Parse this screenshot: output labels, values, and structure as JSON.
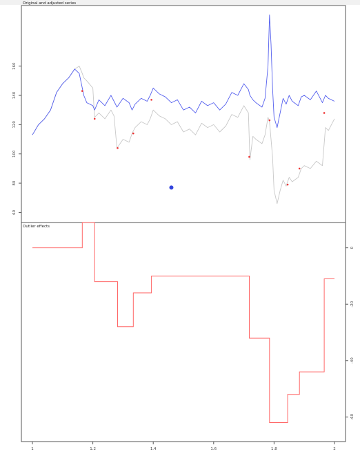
{
  "chart_data": [
    {
      "panel": "top",
      "type": "line",
      "title": "Original and adjusted series",
      "xlim": [
        1.0,
        2.0
      ],
      "ylim": [
        55,
        200
      ],
      "y_ticks": [
        60,
        80,
        100,
        120,
        140,
        160
      ],
      "y_tick_labels": [
        "60",
        "80",
        "100",
        "120",
        "140",
        "160"
      ],
      "colors": {
        "original": "#5560ee",
        "adjusted": "#c8c8c8",
        "outlier": "#ee3333",
        "marker": "#3344dd"
      },
      "series": [
        {
          "role": "original",
          "x": [
            1.0,
            1.02,
            1.04,
            1.06,
            1.08,
            1.1,
            1.12,
            1.14,
            1.155,
            1.165,
            1.17,
            1.18,
            1.2,
            1.206,
            1.22,
            1.24,
            1.26,
            1.27,
            1.28,
            1.3,
            1.32,
            1.33,
            1.34,
            1.36,
            1.38,
            1.39,
            1.4,
            1.42,
            1.44,
            1.46,
            1.48,
            1.5,
            1.52,
            1.54,
            1.56,
            1.58,
            1.6,
            1.62,
            1.64,
            1.66,
            1.68,
            1.7,
            1.715,
            1.72,
            1.73,
            1.74,
            1.76,
            1.77,
            1.78,
            1.785,
            1.79,
            1.795,
            1.8,
            1.81,
            1.82,
            1.83,
            1.84,
            1.85,
            1.86,
            1.88,
            1.89,
            1.9,
            1.92,
            1.94,
            1.96,
            1.97,
            1.98,
            2.0
          ],
          "y": [
            113,
            120,
            124,
            130,
            142,
            148,
            152,
            158,
            155,
            145,
            140,
            135,
            133,
            130,
            137,
            133,
            140,
            136,
            132,
            138,
            135,
            130,
            134,
            138,
            136,
            140,
            145,
            141,
            139,
            135,
            137,
            130,
            132,
            128,
            136,
            133,
            135,
            130,
            134,
            142,
            140,
            148,
            144,
            140,
            137,
            135,
            132,
            138,
            160,
            195,
            175,
            145,
            125,
            118,
            128,
            138,
            134,
            140,
            136,
            133,
            139,
            140,
            137,
            143,
            135,
            140,
            138,
            136
          ]
        },
        {
          "role": "adjusted",
          "x": [
            1.0,
            1.02,
            1.04,
            1.06,
            1.08,
            1.1,
            1.12,
            1.14,
            1.155,
            1.165,
            1.17,
            1.18,
            1.2,
            1.206,
            1.22,
            1.24,
            1.26,
            1.27,
            1.28,
            1.3,
            1.32,
            1.33,
            1.34,
            1.36,
            1.38,
            1.39,
            1.4,
            1.42,
            1.44,
            1.46,
            1.48,
            1.5,
            1.52,
            1.54,
            1.56,
            1.58,
            1.6,
            1.62,
            1.64,
            1.66,
            1.68,
            1.7,
            1.715,
            1.72,
            1.73,
            1.74,
            1.76,
            1.77,
            1.78,
            1.785,
            1.79,
            1.795,
            1.8,
            1.81,
            1.82,
            1.83,
            1.84,
            1.85,
            1.86,
            1.88,
            1.89,
            1.9,
            1.92,
            1.94,
            1.96,
            1.97,
            1.98,
            2.0
          ],
          "y": [
            113,
            120,
            124,
            130,
            142,
            148,
            152,
            158,
            160,
            155,
            152,
            150,
            145,
            125,
            128,
            124,
            130,
            126,
            104,
            110,
            108,
            114,
            118,
            122,
            120,
            124,
            130,
            126,
            124,
            120,
            122,
            115,
            117,
            113,
            121,
            118,
            120,
            115,
            119,
            127,
            125,
            133,
            128,
            96,
            112,
            110,
            107,
            113,
            125,
            122,
            110,
            98,
            75,
            66,
            75,
            82,
            78,
            84,
            81,
            84,
            90,
            92,
            90,
            95,
            92,
            118,
            116,
            124
          ]
        }
      ],
      "outlier_points": {
        "x": [
          1.165,
          1.206,
          1.282,
          1.334,
          1.394,
          1.718,
          1.785,
          1.845,
          1.884,
          1.966
        ],
        "y": [
          143,
          124,
          104,
          114,
          137,
          98,
          123,
          79,
          90,
          128
        ]
      },
      "marker_point": {
        "x": 1.46,
        "y": 77
      }
    },
    {
      "panel": "bottom",
      "type": "line",
      "title": "Outlier effects",
      "step": true,
      "xlim": [
        1.0,
        2.0
      ],
      "ylim": [
        -68,
        8
      ],
      "x_ticks": [
        1.0,
        1.2,
        1.4,
        1.6,
        1.8,
        2.0
      ],
      "x_tick_labels": [
        "1",
        "1.2",
        "1.4",
        "1.6",
        "1.8",
        "2"
      ],
      "y_ticks": [
        0,
        -20,
        -40,
        -60
      ],
      "y_tick_labels": [
        "0",
        "-20",
        "-40",
        "-60"
      ],
      "colors": {
        "effect": "#ff6666"
      },
      "series": [
        {
          "role": "effect",
          "x": [
            1.0,
            1.165,
            1.206,
            1.282,
            1.334,
            1.394,
            1.718,
            1.785,
            1.845,
            1.884,
            1.966,
            2.0
          ],
          "y": [
            0,
            9,
            -12,
            -28,
            -16,
            -10,
            -32,
            -62,
            -52,
            -44,
            -11,
            -11
          ]
        }
      ]
    }
  ]
}
